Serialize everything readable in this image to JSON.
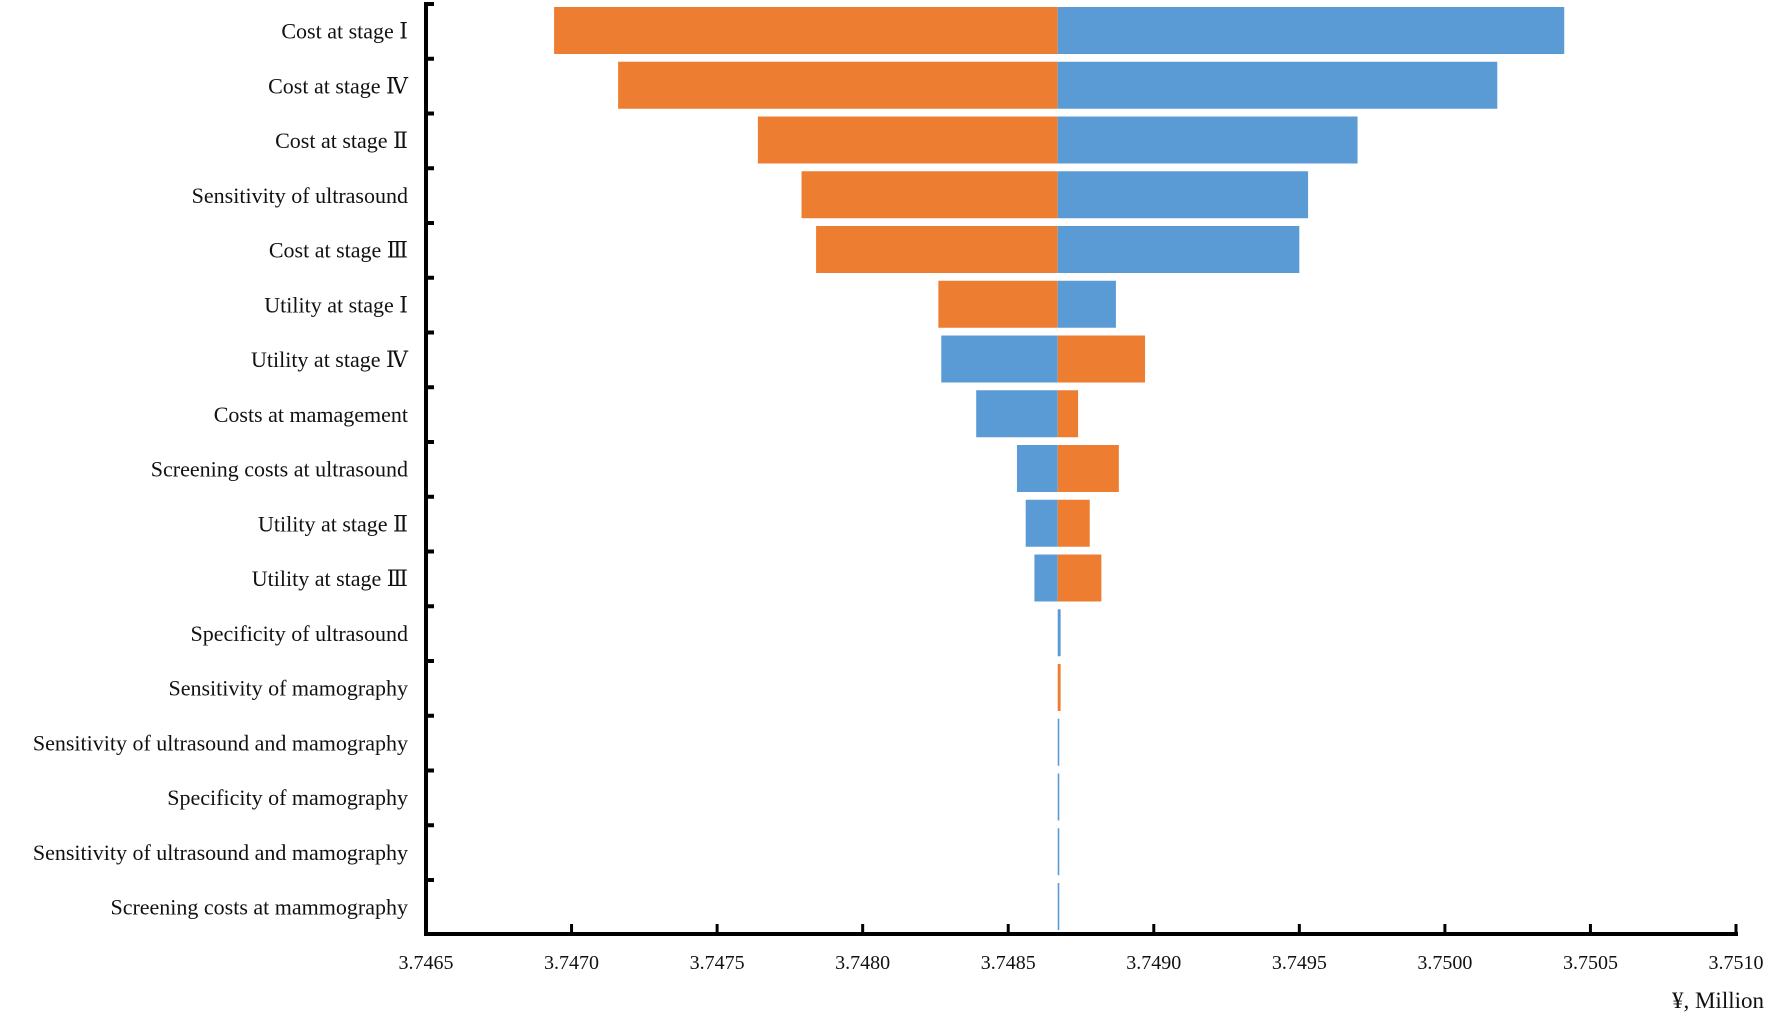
{
  "colors": {
    "orange": "#ED7D31",
    "blue": "#5B9BD5",
    "axis": "#000000"
  },
  "chart_data": {
    "type": "tornado",
    "title": "",
    "xlabel": "¥, Million",
    "ylabel": "",
    "base_value": 3.74867,
    "xlim": [
      3.7465,
      3.751
    ],
    "xticks": [
      "3.7465",
      "3.7470",
      "3.7475",
      "3.7480",
      "3.7485",
      "3.7490",
      "3.7495",
      "3.7500",
      "3.7505",
      "3.7510"
    ],
    "legend": [],
    "bars": [
      {
        "label": "Cost at stage Ⅰ",
        "low": 3.74694,
        "high": 3.75041,
        "left_color": "orange",
        "right_color": "blue"
      },
      {
        "label": "Cost at stage Ⅳ",
        "low": 3.74716,
        "high": 3.75018,
        "left_color": "orange",
        "right_color": "blue"
      },
      {
        "label": "Cost at stage Ⅱ",
        "low": 3.74764,
        "high": 3.7497,
        "left_color": "orange",
        "right_color": "blue"
      },
      {
        "label": "Sensitivity of ultrasound",
        "low": 3.74779,
        "high": 3.74953,
        "left_color": "orange",
        "right_color": "blue"
      },
      {
        "label": "Cost at stage Ⅲ",
        "low": 3.74784,
        "high": 3.7495,
        "left_color": "orange",
        "right_color": "blue"
      },
      {
        "label": "Utility at stage Ⅰ",
        "low": 3.74826,
        "high": 3.74887,
        "left_color": "orange",
        "right_color": "blue"
      },
      {
        "label": "Utility at stage Ⅳ",
        "low": 3.74827,
        "high": 3.74897,
        "left_color": "blue",
        "right_color": "orange"
      },
      {
        "label": "Costs at mamagement",
        "low": 3.74839,
        "high": 3.74874,
        "left_color": "blue",
        "right_color": "orange"
      },
      {
        "label": "Screening costs at ultrasound",
        "low": 3.74853,
        "high": 3.74888,
        "left_color": "blue",
        "right_color": "orange"
      },
      {
        "label": "Utility at stage Ⅱ",
        "low": 3.74856,
        "high": 3.74878,
        "left_color": "blue",
        "right_color": "orange"
      },
      {
        "label": "Utility at stage Ⅲ",
        "low": 3.74859,
        "high": 3.74882,
        "left_color": "blue",
        "right_color": "orange"
      },
      {
        "label": "Specificity of ultrasound",
        "low": 3.74867,
        "high": 3.74868,
        "left_color": "blue",
        "right_color": "blue"
      },
      {
        "label": "Sensitivity of mamography",
        "low": 3.74867,
        "high": 3.74868,
        "left_color": "orange",
        "right_color": "orange"
      },
      {
        "label": "Sensitivity of ultrasound and mamography",
        "low": 3.74867,
        "high": 3.748675,
        "left_color": "blue",
        "right_color": "blue"
      },
      {
        "label": "Specificity of mamography",
        "low": 3.74867,
        "high": 3.748675,
        "left_color": "blue",
        "right_color": "blue"
      },
      {
        "label": "Sensitivity of ultrasound and mamography",
        "low": 3.74867,
        "high": 3.748675,
        "left_color": "blue",
        "right_color": "blue"
      },
      {
        "label": "Screening costs at mammography",
        "low": 3.74867,
        "high": 3.748675,
        "left_color": "blue",
        "right_color": "blue"
      }
    ]
  }
}
